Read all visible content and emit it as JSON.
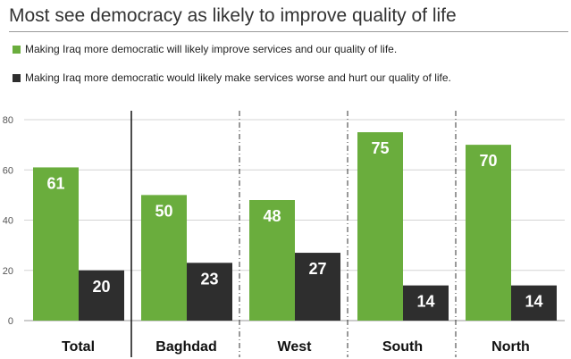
{
  "chart_data": {
    "type": "bar",
    "title": "Most see democracy as likely to improve quality of life",
    "xlabel": "",
    "ylabel": "",
    "categories": [
      "Total",
      "Baghdad",
      "West",
      "South",
      "North"
    ],
    "series": [
      {
        "name": "Making Iraq more democratic will likely improve services and our quality of life.",
        "color": "#6aad3d",
        "values": [
          61,
          50,
          48,
          75,
          70
        ]
      },
      {
        "name": "Making Iraq more democratic would likely make services worse and hurt our quality of life.",
        "color": "#2e2e2e",
        "values": [
          20,
          23,
          27,
          14,
          14
        ]
      }
    ],
    "ylim": [
      0,
      80
    ],
    "yticks": [
      0,
      20,
      40,
      60,
      80
    ],
    "grid": true,
    "legend": "top-left"
  }
}
